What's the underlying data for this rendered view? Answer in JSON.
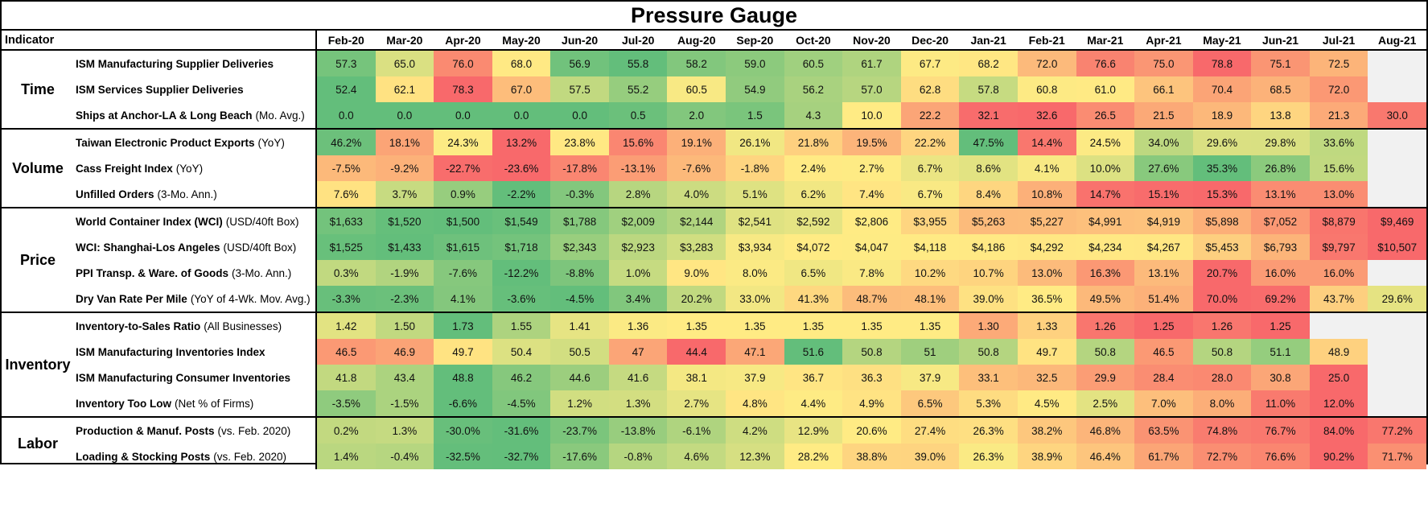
{
  "title": "Pressure Gauge",
  "header": {
    "indicator_label": "Indicator"
  },
  "colors": {
    "low_pressure_green": "#63BE7B",
    "mid_yellow": "#FFEB84",
    "high_pressure_red": "#F8696B",
    "blank_cell": "#f1f1f1",
    "border": "#000000"
  },
  "chart_data": {
    "type": "heatmap",
    "title": "Pressure Gauge",
    "columns": [
      "Feb-20",
      "Mar-20",
      "Apr-20",
      "May-20",
      "Jun-20",
      "Jul-20",
      "Aug-20",
      "Sep-20",
      "Oct-20",
      "Nov-20",
      "Dec-20",
      "Jan-21",
      "Feb-21",
      "Mar-21",
      "Apr-21",
      "May-21",
      "Jun-21",
      "Jul-21",
      "Aug-21"
    ],
    "color_scale": "3-color red-yellow-green per row, midpoint at row median",
    "groups": [
      {
        "name": "Time",
        "rows": [
          {
            "label": "ISM Manufacturing Supplier Deliveries",
            "note": "",
            "high_is_red": true,
            "values": [
              "57.3",
              "65.0",
              "76.0",
              "68.0",
              "56.9",
              "55.8",
              "58.2",
              "59.0",
              "60.5",
              "61.7",
              "67.7",
              "68.2",
              "72.0",
              "76.6",
              "75.0",
              "78.8",
              "75.1",
              "72.5",
              ""
            ]
          },
          {
            "label": "ISM Services Supplier Deliveries",
            "note": "",
            "high_is_red": true,
            "values": [
              "52.4",
              "62.1",
              "78.3",
              "67.0",
              "57.5",
              "55.2",
              "60.5",
              "54.9",
              "56.2",
              "57.0",
              "62.8",
              "57.8",
              "60.8",
              "61.0",
              "66.1",
              "70.4",
              "68.5",
              "72.0",
              ""
            ]
          },
          {
            "label": "Ships at Anchor-LA & Long Beach",
            "note": "(Mo. Avg.)",
            "high_is_red": true,
            "values": [
              "0.0",
              "0.0",
              "0.0",
              "0.0",
              "0.0",
              "0.5",
              "2.0",
              "1.5",
              "4.3",
              "10.0",
              "22.2",
              "32.1",
              "32.6",
              "26.5",
              "21.5",
              "18.9",
              "13.8",
              "21.3",
              "30.0"
            ]
          }
        ]
      },
      {
        "name": "Volume",
        "rows": [
          {
            "label": "Taiwan Electronic Product Exports",
            "note": "(YoY)",
            "high_is_red": false,
            "values": [
              "46.2%",
              "18.1%",
              "24.3%",
              "13.2%",
              "23.8%",
              "15.6%",
              "19.1%",
              "26.1%",
              "21.8%",
              "19.5%",
              "22.2%",
              "47.5%",
              "14.4%",
              "24.5%",
              "34.0%",
              "29.6%",
              "29.8%",
              "33.6%",
              ""
            ]
          },
          {
            "label": "Cass Freight Index",
            "note": "(YoY)",
            "high_is_red": false,
            "values": [
              "-7.5%",
              "-9.2%",
              "-22.7%",
              "-23.6%",
              "-17.8%",
              "-13.1%",
              "-7.6%",
              "-1.8%",
              "2.4%",
              "2.7%",
              "6.7%",
              "8.6%",
              "4.1%",
              "10.0%",
              "27.6%",
              "35.3%",
              "26.8%",
              "15.6%",
              ""
            ]
          },
          {
            "label": "Unfilled Orders",
            "note": "(3-Mo. Ann.)",
            "high_is_red": true,
            "values": [
              "7.6%",
              "3.7%",
              "0.9%",
              "-2.2%",
              "-0.3%",
              "2.8%",
              "4.0%",
              "5.1%",
              "6.2%",
              "7.4%",
              "6.7%",
              "8.4%",
              "10.8%",
              "14.7%",
              "15.1%",
              "15.3%",
              "13.1%",
              "13.0%",
              ""
            ]
          }
        ]
      },
      {
        "name": "Price",
        "rows": [
          {
            "label": "World Container Index (WCI)",
            "note": "(USD/40ft Box)",
            "high_is_red": true,
            "values": [
              "$1,633",
              "$1,520",
              "$1,500",
              "$1,549",
              "$1,788",
              "$2,009",
              "$2,144",
              "$2,541",
              "$2,592",
              "$2,806",
              "$3,955",
              "$5,263",
              "$5,227",
              "$4,991",
              "$4,919",
              "$5,898",
              "$7,052",
              "$8,879",
              "$9,469"
            ]
          },
          {
            "label": "WCI: Shanghai-Los Angeles",
            "note": "(USD/40ft Box)",
            "high_is_red": true,
            "values": [
              "$1,525",
              "$1,433",
              "$1,615",
              "$1,718",
              "$2,343",
              "$2,923",
              "$3,283",
              "$3,934",
              "$4,072",
              "$4,047",
              "$4,118",
              "$4,186",
              "$4,292",
              "$4,234",
              "$4,267",
              "$5,453",
              "$6,793",
              "$9,797",
              "$10,507"
            ]
          },
          {
            "label": "PPI Transp. & Ware. of Goods",
            "note": "(3-Mo. Ann.)",
            "high_is_red": true,
            "values": [
              "0.3%",
              "-1.9%",
              "-7.6%",
              "-12.2%",
              "-8.8%",
              "1.0%",
              "9.0%",
              "8.0%",
              "6.5%",
              "7.8%",
              "10.2%",
              "10.7%",
              "13.0%",
              "16.3%",
              "13.1%",
              "20.7%",
              "16.0%",
              "16.0%",
              ""
            ]
          },
          {
            "label": "Dry Van Rate Per Mile",
            "note": "(YoY of 4-Wk. Mov. Avg.)",
            "high_is_red": true,
            "values": [
              "-3.3%",
              "-2.3%",
              "4.1%",
              "-3.6%",
              "-4.5%",
              "3.4%",
              "20.2%",
              "33.0%",
              "41.3%",
              "48.7%",
              "48.1%",
              "39.0%",
              "36.5%",
              "49.5%",
              "51.4%",
              "70.0%",
              "69.2%",
              "43.7%",
              "29.6%"
            ]
          }
        ]
      },
      {
        "name": "Inventory",
        "rows": [
          {
            "label": "Inventory-to-Sales Ratio",
            "note": "(All Businesses)",
            "high_is_red": false,
            "values": [
              "1.42",
              "1.50",
              "1.73",
              "1.55",
              "1.41",
              "1.36",
              "1.35",
              "1.35",
              "1.35",
              "1.35",
              "1.35",
              "1.30",
              "1.33",
              "1.26",
              "1.25",
              "1.26",
              "1.25",
              "",
              ""
            ]
          },
          {
            "label": "ISM Manufacturing Inventories Index",
            "note": "",
            "high_is_red": false,
            "values": [
              "46.5",
              "46.9",
              "49.7",
              "50.4",
              "50.5",
              "47",
              "44.4",
              "47.1",
              "51.6",
              "50.8",
              "51",
              "50.8",
              "49.7",
              "50.8",
              "46.5",
              "50.8",
              "51.1",
              "48.9",
              ""
            ]
          },
          {
            "label": "ISM Manufacturing Consumer Inventories",
            "note": "",
            "high_is_red": false,
            "values": [
              "41.8",
              "43.4",
              "48.8",
              "46.2",
              "44.6",
              "41.6",
              "38.1",
              "37.9",
              "36.7",
              "36.3",
              "37.9",
              "33.1",
              "32.5",
              "29.9",
              "28.4",
              "28.0",
              "30.8",
              "25.0",
              ""
            ]
          },
          {
            "label": "Inventory Too Low",
            "note": "(Net % of Firms)",
            "high_is_red": true,
            "values": [
              "-3.5%",
              "-1.5%",
              "-6.6%",
              "-4.5%",
              "1.2%",
              "1.3%",
              "2.7%",
              "4.8%",
              "4.4%",
              "4.9%",
              "6.5%",
              "5.3%",
              "4.5%",
              "2.5%",
              "7.0%",
              "8.0%",
              "11.0%",
              "12.0%",
              ""
            ]
          }
        ]
      },
      {
        "name": "Labor",
        "rows": [
          {
            "label": "Production & Manuf. Posts",
            "note": "(vs. Feb. 2020)",
            "high_is_red": true,
            "values": [
              "0.2%",
              "1.3%",
              "-30.0%",
              "-31.6%",
              "-23.7%",
              "-13.8%",
              "-6.1%",
              "4.2%",
              "12.9%",
              "20.6%",
              "27.4%",
              "26.3%",
              "38.2%",
              "46.8%",
              "63.5%",
              "74.8%",
              "76.7%",
              "84.0%",
              "77.2%"
            ]
          },
          {
            "label": "Loading & Stocking Posts",
            "note": "(vs. Feb. 2020)",
            "high_is_red": true,
            "values": [
              "1.4%",
              "-0.4%",
              "-32.5%",
              "-32.7%",
              "-17.6%",
              "-0.8%",
              "4.6%",
              "12.3%",
              "28.2%",
              "38.8%",
              "39.0%",
              "26.3%",
              "38.9%",
              "46.4%",
              "61.7%",
              "72.7%",
              "76.6%",
              "90.2%",
              "71.7%"
            ]
          }
        ]
      }
    ]
  }
}
